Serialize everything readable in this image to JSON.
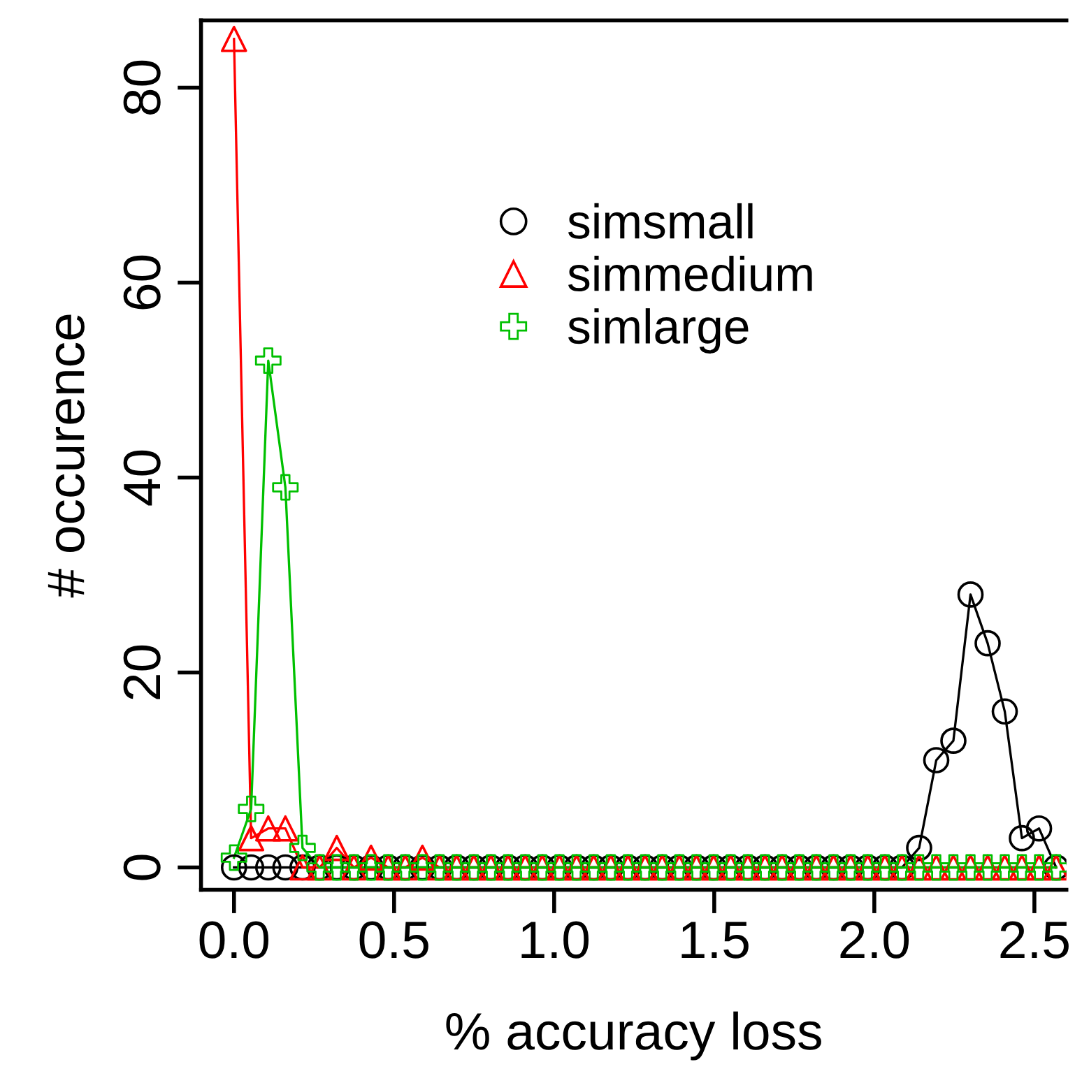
{
  "chart_data": {
    "type": "line",
    "xlabel": "% accuracy loss",
    "ylabel": "# occurence",
    "x": [
      0,
      0.0535,
      0.107,
      0.1605,
      0.214,
      0.2675,
      0.321,
      0.3745,
      0.428,
      0.4815,
      0.535,
      0.5885,
      0.642,
      0.6955,
      0.749,
      0.8025,
      0.856,
      0.9095,
      0.963,
      1.0165,
      1.07,
      1.1235,
      1.177,
      1.2305,
      1.284,
      1.3375,
      1.391,
      1.4445,
      1.498,
      1.5515,
      1.605,
      1.6585,
      1.712,
      1.7655,
      1.819,
      1.8725,
      1.926,
      1.9795,
      2.033,
      2.0865,
      2.14,
      2.1935,
      2.247,
      2.3005,
      2.354,
      2.4075,
      2.461,
      2.5145,
      2.568
    ],
    "series": [
      {
        "name": "simsmall",
        "color": "#000000",
        "marker": "circle",
        "values": [
          0,
          0,
          0,
          0,
          0,
          0,
          0,
          0,
          0,
          0,
          0,
          0,
          0,
          0,
          0,
          0,
          0,
          0,
          0,
          0,
          0,
          0,
          0,
          0,
          0,
          0,
          0,
          0,
          0,
          0,
          0,
          0,
          0,
          0,
          0,
          0,
          0,
          0,
          0,
          0,
          2,
          11,
          13,
          28,
          23,
          16,
          3,
          4,
          0
        ]
      },
      {
        "name": "simmedium",
        "color": "#ff0000",
        "marker": "triangle",
        "values": [
          85,
          3,
          4,
          4,
          0,
          0,
          2,
          0,
          1,
          0,
          0,
          1,
          0,
          0,
          0,
          0,
          0,
          0,
          0,
          0,
          0,
          0,
          0,
          0,
          0,
          0,
          0,
          0,
          0,
          0,
          0,
          0,
          0,
          0,
          0,
          0,
          0,
          0,
          0,
          0,
          0,
          0,
          0,
          0,
          0,
          0,
          0,
          0,
          0
        ]
      },
      {
        "name": "simlarge",
        "color": "#00c000",
        "marker": "cross",
        "values": [
          1,
          6,
          52,
          39,
          2,
          0,
          0,
          0,
          0,
          0,
          0,
          0,
          0,
          0,
          0,
          0,
          0,
          0,
          0,
          0,
          0,
          0,
          0,
          0,
          0,
          0,
          0,
          0,
          0,
          0,
          0,
          0,
          0,
          0,
          0,
          0,
          0,
          0,
          0,
          0,
          0,
          0,
          0,
          0,
          0,
          0,
          0,
          0,
          0
        ]
      }
    ],
    "xlim": [
      -0.103,
      2.6
    ],
    "xticks": [
      {
        "value": 0,
        "label": "0.0"
      },
      {
        "value": 0.5,
        "label": "0.5"
      },
      {
        "value": 1,
        "label": "1.0"
      },
      {
        "value": 1.5,
        "label": "1.5"
      },
      {
        "value": 2,
        "label": "2.0"
      },
      {
        "value": 2.5,
        "label": "2.5"
      }
    ],
    "ylim": [
      -2.3,
      86.9
    ],
    "yticks": [
      0,
      20,
      40,
      60,
      80
    ],
    "grid": false,
    "legend": "top right",
    "line_style": "solid"
  }
}
